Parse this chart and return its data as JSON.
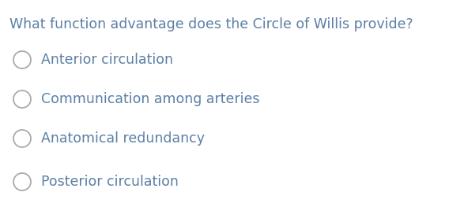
{
  "question": "What function advantage does the Circle of Willis provide?",
  "options": [
    "Anterior circulation",
    "Communication among arteries",
    "Anatomical redundancy",
    "Posterior circulation"
  ],
  "question_color": "#5b7fa6",
  "option_color": "#5b7fa6",
  "background_color": "#ffffff",
  "question_fontsize": 12.5,
  "option_fontsize": 12.5,
  "circle_edge_color": "#aaaaaa",
  "fig_width": 5.87,
  "fig_height": 2.77,
  "dpi": 100
}
